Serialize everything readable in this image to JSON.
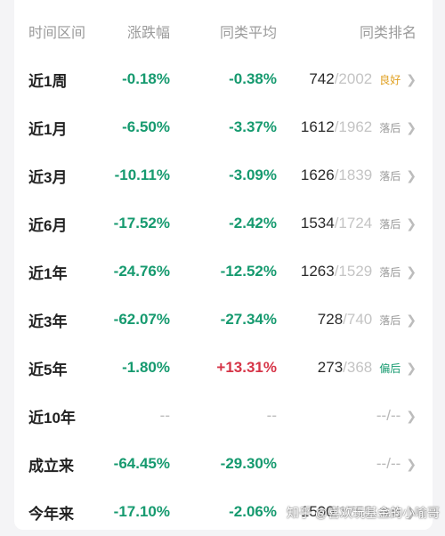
{
  "headers": {
    "period": "时间区间",
    "change": "涨跌幅",
    "peer_avg": "同类平均",
    "peer_rank": "同类排名"
  },
  "rows": [
    {
      "period": "近1周",
      "change": "-0.18%",
      "change_color": "green",
      "avg": "-0.38%",
      "avg_color": "green",
      "rank": "742",
      "total": "/2002",
      "badge": "良好",
      "badge_type": "good"
    },
    {
      "period": "近1月",
      "change": "-6.50%",
      "change_color": "green",
      "avg": "-3.37%",
      "avg_color": "green",
      "rank": "1612",
      "total": "/1962",
      "badge": "落后",
      "badge_type": "behind"
    },
    {
      "period": "近3月",
      "change": "-10.11%",
      "change_color": "green",
      "avg": "-3.09%",
      "avg_color": "green",
      "rank": "1626",
      "total": "/1839",
      "badge": "落后",
      "badge_type": "behind"
    },
    {
      "period": "近6月",
      "change": "-17.52%",
      "change_color": "green",
      "avg": "-2.42%",
      "avg_color": "green",
      "rank": "1534",
      "total": "/1724",
      "badge": "落后",
      "badge_type": "behind"
    },
    {
      "period": "近1年",
      "change": "-24.76%",
      "change_color": "green",
      "avg": "-12.52%",
      "avg_color": "green",
      "rank": "1263",
      "total": "/1529",
      "badge": "落后",
      "badge_type": "behind"
    },
    {
      "period": "近3年",
      "change": "-62.07%",
      "change_color": "green",
      "avg": "-27.34%",
      "avg_color": "green",
      "rank": "728",
      "total": "/740",
      "badge": "落后",
      "badge_type": "behind"
    },
    {
      "period": "近5年",
      "change": "-1.80%",
      "change_color": "green",
      "avg": "+13.31%",
      "avg_color": "red",
      "rank": "273",
      "total": "/368",
      "badge": "偏后",
      "badge_type": "lag"
    },
    {
      "period": "近10年",
      "change": "--",
      "change_color": "dash",
      "avg": "--",
      "avg_color": "dash",
      "rank": "--",
      "total": "/--",
      "badge": "",
      "badge_type": ""
    },
    {
      "period": "成立来",
      "change": "-64.45%",
      "change_color": "green",
      "avg": "-29.30%",
      "avg_color": "green",
      "rank": "--",
      "total": "/--",
      "badge": "",
      "badge_type": ""
    },
    {
      "period": "今年来",
      "change": "-17.10%",
      "change_color": "green",
      "avg": "-2.06%",
      "avg_color": "green",
      "rank": "1590",
      "total": "/1755",
      "badge": "落后",
      "badge_type": "behind"
    }
  ],
  "chevron_icon": "chevron-right-icon",
  "watermark": "知乎 @喜欢玩基金的小喻哥",
  "colors": {
    "green": "#169a6f",
    "red": "#d63447",
    "good": "#e0a020"
  }
}
